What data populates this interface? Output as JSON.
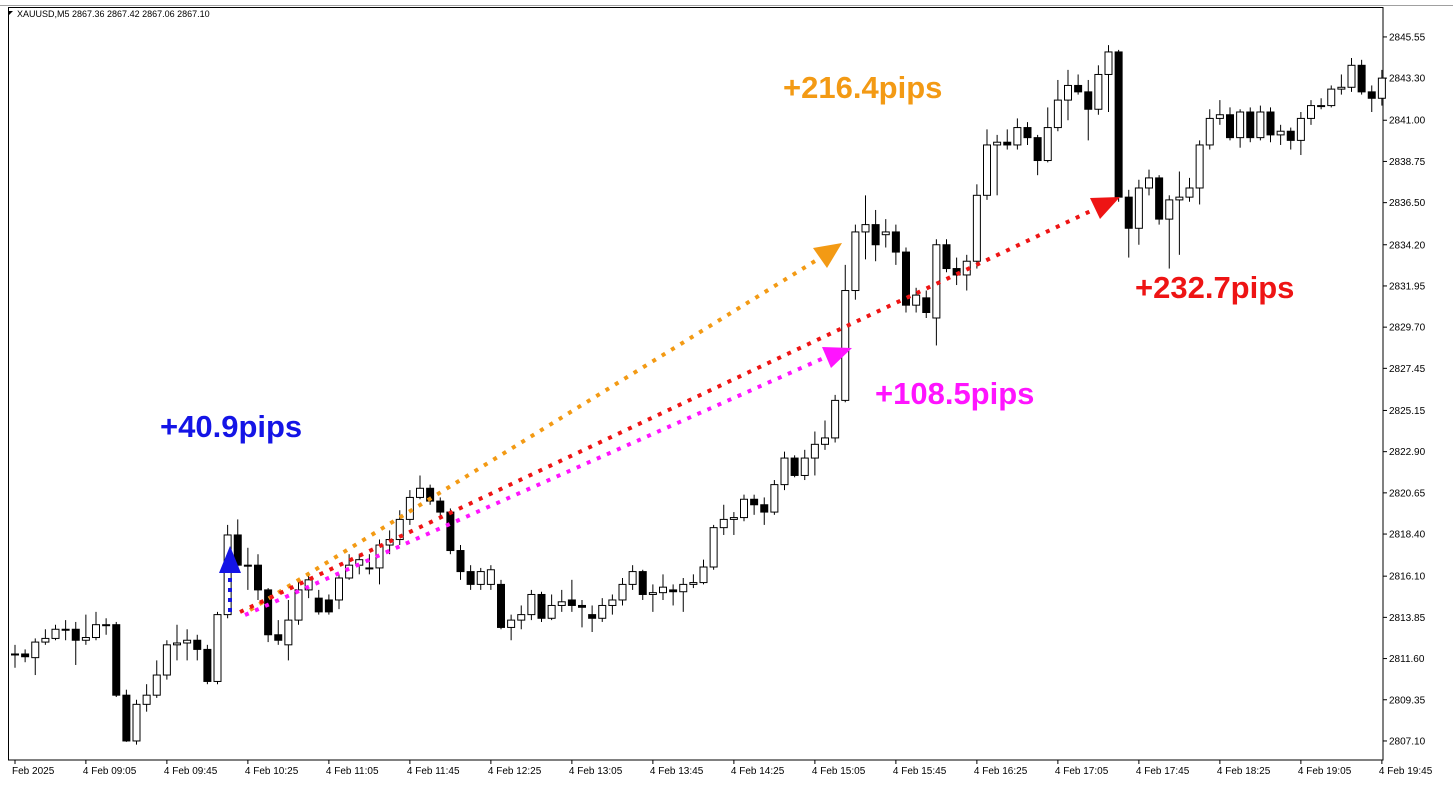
{
  "chart_data": {
    "type": "candlestick",
    "title": "XAUUSD,M5  2867.36 2867.42 2867.06 2867.10",
    "annotations": [
      {
        "text": "+40.9pips",
        "color": "#1414e6"
      },
      {
        "text": "+216.4pips",
        "color": "#f39a14"
      },
      {
        "text": "+232.7pips",
        "color": "#ee1414"
      },
      {
        "text": "+108.5pips",
        "color": "#ff14ff"
      }
    ],
    "up_color": "#ffffff",
    "down_color": "#000000",
    "ylim": [
      2806.06,
      2847.13
    ],
    "yticks": [
      {
        "value": 2807.1,
        "label": "2807.10"
      },
      {
        "value": 2809.35,
        "label": "2809.35"
      },
      {
        "value": 2811.6,
        "label": "2811.60"
      },
      {
        "value": 2813.85,
        "label": "2813.85"
      },
      {
        "value": 2816.1,
        "label": "2816.10"
      },
      {
        "value": 2818.4,
        "label": "2818.40"
      },
      {
        "value": 2820.65,
        "label": "2820.65"
      },
      {
        "value": 2822.9,
        "label": "2822.90"
      },
      {
        "value": 2825.15,
        "label": "2825.15"
      },
      {
        "value": 2827.45,
        "label": "2827.45"
      },
      {
        "value": 2829.7,
        "label": "2829.70"
      },
      {
        "value": 2831.95,
        "label": "2831.95"
      },
      {
        "value": 2834.2,
        "label": "2834.20"
      },
      {
        "value": 2836.5,
        "label": "2836.50"
      },
      {
        "value": 2838.75,
        "label": "2838.75"
      },
      {
        "value": 2841.0,
        "label": "2841.00"
      },
      {
        "value": 2843.3,
        "label": "2843.30"
      },
      {
        "value": 2845.55,
        "label": "2845.55"
      }
    ],
    "categories": [
      "Feb 2025",
      null,
      null,
      null,
      null,
      null,
      null,
      "4 Feb 09:05",
      null,
      null,
      null,
      null,
      null,
      null,
      null,
      "4 Feb 09:45",
      null,
      null,
      null,
      null,
      null,
      null,
      null,
      "4 Feb 10:25",
      null,
      null,
      null,
      null,
      null,
      null,
      null,
      "4 Feb 11:05",
      null,
      null,
      null,
      null,
      null,
      null,
      null,
      "4 Feb 11:45",
      null,
      null,
      null,
      null,
      null,
      null,
      null,
      "4 Feb 12:25",
      null,
      null,
      null,
      null,
      null,
      null,
      null,
      "4 Feb 13:05",
      null,
      null,
      null,
      null,
      null,
      null,
      null,
      "4 Feb 13:45",
      null,
      null,
      null,
      null,
      null,
      null,
      null,
      "4 Feb 14:25",
      null,
      null,
      null,
      null,
      null,
      null,
      null,
      "4 Feb 15:05",
      null,
      null,
      null,
      null,
      null,
      null,
      null,
      "4 Feb 15:45",
      null,
      null,
      null,
      null,
      null,
      null,
      null,
      "4 Feb 16:25",
      null,
      null,
      null,
      null,
      null,
      null,
      null,
      "4 Feb 17:05",
      null,
      null,
      null,
      null,
      null,
      null,
      null,
      "4 Feb 17:45",
      null,
      null,
      null,
      null,
      null,
      null,
      null,
      "4 Feb 18:25",
      null,
      null,
      null,
      null,
      null,
      null,
      null,
      "4 Feb 19:05",
      null,
      null,
      null,
      null,
      null,
      null,
      null,
      "4 Feb 19:45"
    ],
    "open": [
      2811.85,
      2811.85,
      2811.65,
      2812.5,
      2812.7,
      2813.2,
      2813.2,
      2812.6,
      2812.75,
      2813.45,
      2813.45,
      2809.6,
      2807.1,
      2809.1,
      2809.6,
      2810.7,
      2812.35,
      2812.45,
      2812.6,
      2812.1,
      2810.35,
      2814.0,
      2818.35,
      2816.7,
      2816.7,
      2815.35,
      2812.9,
      2812.35,
      2813.7,
      2815.35,
      2814.9,
      2814.8,
      2814.8,
      2816.0,
      2816.7,
      2816.55,
      2816.55,
      2817.8,
      2818.1,
      2819.2,
      2820.4,
      2820.9,
      2820.2,
      2819.6,
      2817.5,
      2816.35,
      2815.65,
      2815.65,
      2815.65,
      2813.3,
      2813.7,
      2814.0,
      2815.1,
      2813.8,
      2814.5,
      2814.8,
      2814.5,
      2814.0,
      2813.8,
      2814.5,
      2814.8,
      2815.65,
      2816.35,
      2815.1,
      2815.2,
      2815.35,
      2815.25,
      2815.65,
      2815.75,
      2816.6,
      2818.75,
      2819.2,
      2819.3,
      2820.3,
      2820.0,
      2819.6,
      2821.1,
      2822.55,
      2821.6,
      2822.55,
      2823.3,
      2823.65,
      2825.7,
      2831.7,
      2834.9,
      2835.3,
      2834.75,
      2834.9,
      2833.8,
      2830.9,
      2831.3,
      2830.2,
      2834.2,
      2832.9,
      2832.55,
      2833.3,
      2836.9,
      2839.65,
      2839.8,
      2839.65,
      2840.6,
      2840.05,
      2838.8,
      2840.6,
      2842.1,
      2842.9,
      2842.55,
      2841.6,
      2843.5,
      2844.73,
      2836.8,
      2835.1,
      2837.3,
      2837.85,
      2835.6,
      2836.65,
      2836.8,
      2837.3,
      2839.65,
      2841.1,
      2841.3,
      2840.05,
      2841.45,
      2840.05,
      2841.45,
      2840.2,
      2840.4,
      2839.9,
      2841.1,
      2841.8,
      2841.8,
      2842.7,
      2842.8,
      2844.0,
      2842.55,
      2842.2
    ],
    "high": [
      2812.35,
      2812.1,
      2812.7,
      2813.2,
      2813.45,
      2813.7,
      2813.6,
      2814.0,
      2814.15,
      2813.8,
      2813.6,
      2809.9,
      2809.35,
      2810.2,
      2811.5,
      2812.6,
      2813.45,
      2813.2,
      2812.9,
      2812.35,
      2814.15,
      2818.9,
      2819.2,
      2817.65,
      2817.3,
      2815.45,
      2813.7,
      2814.8,
      2815.8,
      2816.2,
      2815.35,
      2815.1,
      2816.2,
      2817.3,
      2817.3,
      2817.3,
      2818.1,
      2818.6,
      2819.7,
      2820.8,
      2821.6,
      2821.1,
      2820.4,
      2819.8,
      2817.8,
      2816.7,
      2816.55,
      2816.7,
      2815.9,
      2814.0,
      2814.5,
      2815.35,
      2815.25,
      2815.1,
      2815.35,
      2815.9,
      2814.8,
      2814.5,
      2814.9,
      2815.1,
      2816.0,
      2816.7,
      2816.45,
      2815.65,
      2816.2,
      2815.65,
      2816.0,
      2816.2,
      2817.0,
      2818.9,
      2820.0,
      2819.6,
      2820.55,
      2820.55,
      2820.4,
      2821.35,
      2822.9,
      2822.7,
      2823.0,
      2824.0,
      2824.6,
      2826.0,
      2833.1,
      2835.3,
      2836.9,
      2836.1,
      2835.6,
      2835.3,
      2834.05,
      2831.85,
      2831.7,
      2834.5,
      2834.5,
      2833.5,
      2833.65,
      2837.5,
      2840.5,
      2840.2,
      2840.5,
      2841.1,
      2840.9,
      2840.2,
      2841.7,
      2843.2,
      2843.75,
      2843.5,
      2843.2,
      2844.0,
      2845.1,
      2844.84,
      2837.2,
      2837.75,
      2838.3,
      2838.0,
      2836.9,
      2838.2,
      2837.85,
      2839.9,
      2841.6,
      2842.1,
      2841.7,
      2841.6,
      2841.7,
      2841.8,
      2841.7,
      2840.75,
      2840.6,
      2841.45,
      2842.1,
      2842.2,
      2842.9,
      2843.5,
      2844.4,
      2844.3,
      2842.9,
      2843.75
    ],
    "low": [
      2811.1,
      2811.4,
      2810.7,
      2812.35,
      2812.6,
      2812.6,
      2811.25,
      2812.35,
      2812.6,
      2812.9,
      2809.5,
      2807.05,
      2806.9,
      2808.7,
      2809.45,
      2810.45,
      2811.5,
      2811.5,
      2811.5,
      2810.2,
      2810.2,
      2813.8,
      2816.45,
      2815.35,
      2814.8,
      2812.5,
      2812.35,
      2811.5,
      2813.45,
      2814.9,
      2814.0,
      2814.0,
      2814.3,
      2815.9,
      2816.2,
      2816.2,
      2815.65,
      2817.3,
      2817.8,
      2818.9,
      2820.3,
      2820.0,
      2819.2,
      2817.3,
      2815.9,
      2815.35,
      2815.35,
      2815.35,
      2813.2,
      2812.6,
      2813.2,
      2813.7,
      2813.6,
      2813.7,
      2814.15,
      2814.15,
      2813.3,
      2813.05,
      2813.6,
      2814.0,
      2814.5,
      2815.35,
      2814.8,
      2814.15,
      2814.8,
      2814.5,
      2814.15,
      2815.45,
      2815.65,
      2816.45,
      2818.35,
      2818.35,
      2819.1,
      2819.45,
      2818.9,
      2819.45,
      2820.8,
      2821.5,
      2821.35,
      2821.6,
      2823.0,
      2823.4,
      2825.6,
      2831.2,
      2833.4,
      2833.3,
      2834.05,
      2833.1,
      2830.5,
      2830.5,
      2830.2,
      2828.7,
      2832.7,
      2832.0,
      2831.7,
      2832.9,
      2836.65,
      2836.9,
      2839.4,
      2839.4,
      2839.65,
      2838.0,
      2838.7,
      2840.4,
      2841.0,
      2842.4,
      2839.9,
      2841.3,
      2841.45,
      2836.55,
      2833.5,
      2834.2,
      2836.9,
      2835.3,
      2832.9,
      2833.65,
      2836.55,
      2836.4,
      2839.4,
      2840.75,
      2839.9,
      2839.5,
      2839.8,
      2839.9,
      2839.8,
      2839.65,
      2839.4,
      2839.1,
      2840.75,
      2841.6,
      2841.7,
      2842.4,
      2842.55,
      2842.4,
      2841.45,
      2841.8
    ],
    "close": [
      2811.85,
      2811.7,
      2812.5,
      2812.7,
      2813.2,
      2813.2,
      2812.6,
      2812.75,
      2813.45,
      2813.45,
      2809.6,
      2807.1,
      2809.1,
      2809.6,
      2810.7,
      2812.35,
      2812.45,
      2812.6,
      2812.1,
      2810.35,
      2814.0,
      2818.35,
      2816.7,
      2816.7,
      2815.35,
      2812.9,
      2812.6,
      2813.7,
      2815.35,
      2815.9,
      2814.15,
      2814.15,
      2816.0,
      2816.7,
      2817.0,
      2816.55,
      2817.8,
      2818.1,
      2819.2,
      2820.4,
      2820.9,
      2820.2,
      2819.6,
      2817.5,
      2816.35,
      2815.65,
      2816.35,
      2816.45,
      2813.3,
      2813.7,
      2814.0,
      2815.1,
      2813.8,
      2814.5,
      2814.7,
      2814.5,
      2814.4,
      2813.8,
      2814.5,
      2814.8,
      2815.65,
      2816.35,
      2815.1,
      2815.2,
      2815.5,
      2815.25,
      2815.65,
      2815.75,
      2816.6,
      2818.75,
      2819.2,
      2819.3,
      2820.3,
      2820.0,
      2819.6,
      2821.1,
      2822.55,
      2821.6,
      2822.55,
      2823.3,
      2823.65,
      2825.7,
      2831.7,
      2834.9,
      2835.3,
      2834.2,
      2834.9,
      2833.8,
      2830.9,
      2831.45,
      2830.5,
      2834.2,
      2832.9,
      2832.55,
      2833.3,
      2836.9,
      2839.65,
      2839.8,
      2839.65,
      2840.6,
      2840.05,
      2838.8,
      2840.6,
      2842.1,
      2842.9,
      2842.55,
      2841.6,
      2843.5,
      2844.73,
      2836.8,
      2835.1,
      2837.3,
      2837.85,
      2835.6,
      2836.65,
      2836.8,
      2837.3,
      2839.65,
      2841.1,
      2841.3,
      2840.05,
      2841.45,
      2840.05,
      2841.45,
      2840.2,
      2840.4,
      2839.9,
      2841.1,
      2841.8,
      2841.8,
      2842.7,
      2842.8,
      2844.0,
      2842.55,
      2842.2,
      2843.3
    ]
  }
}
